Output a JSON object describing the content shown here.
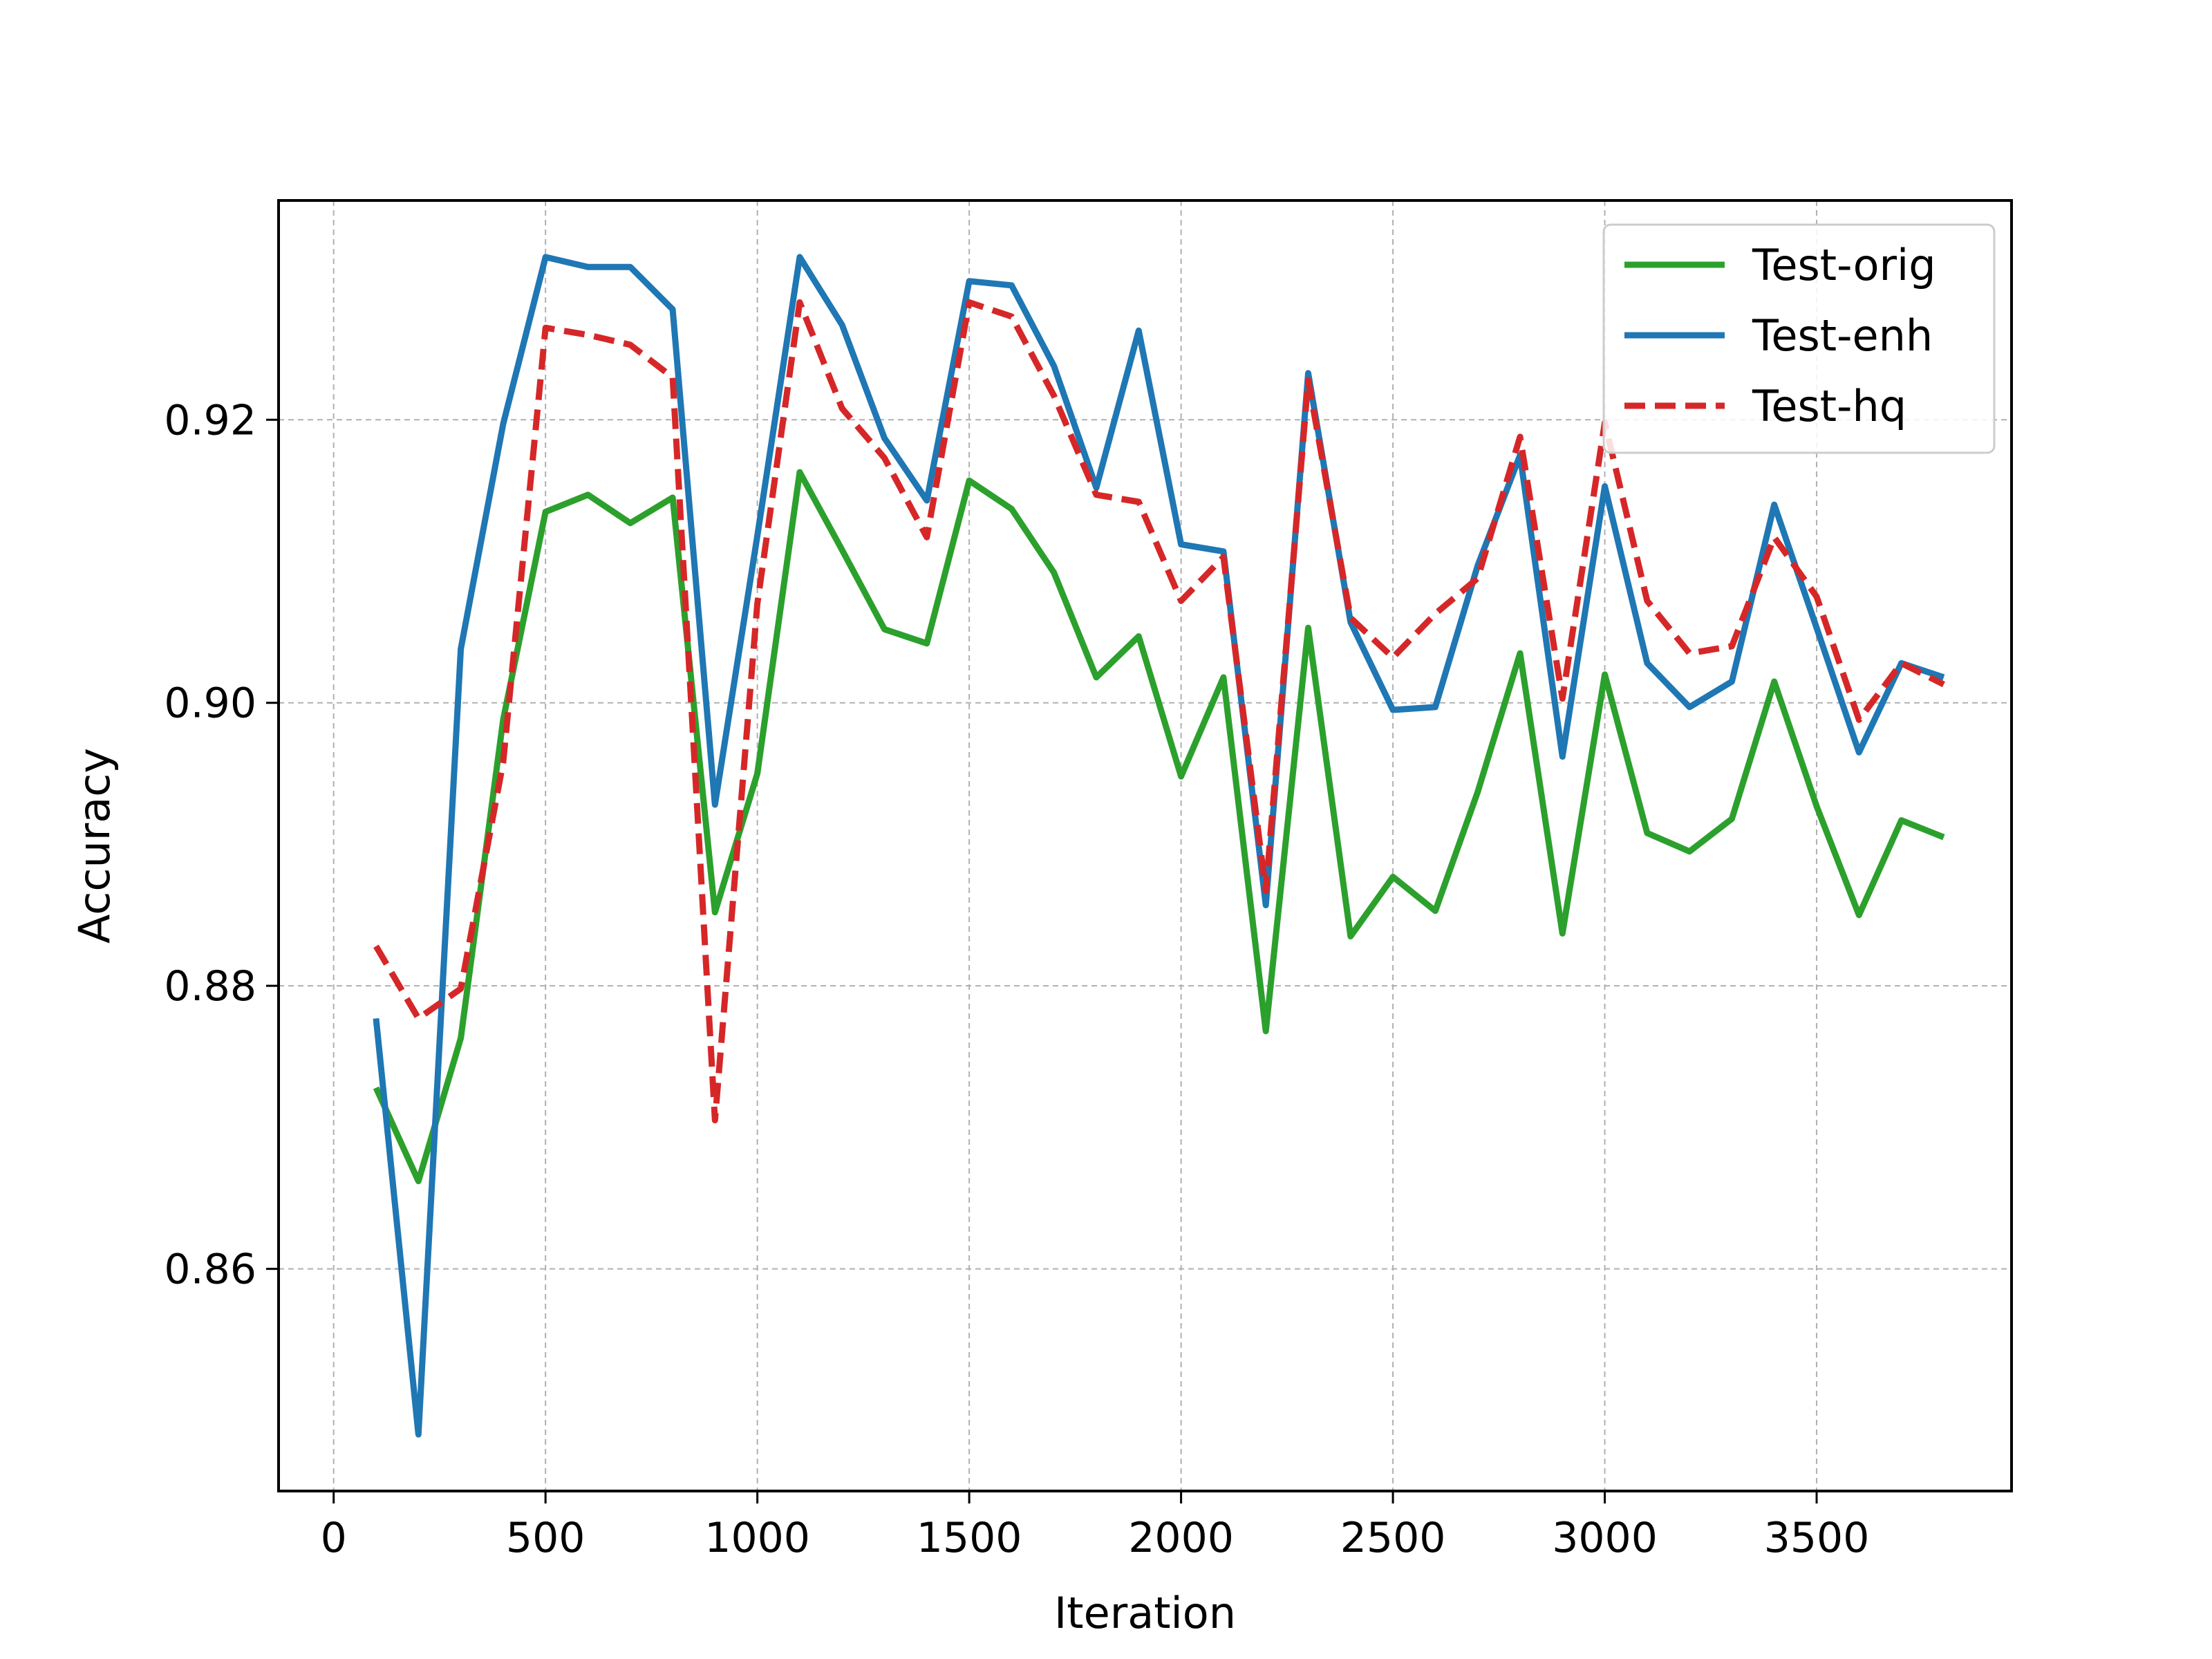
{
  "chart_data": {
    "type": "line",
    "xlabel": "Iteration",
    "ylabel": "Accuracy",
    "xlim": [
      -130,
      3960
    ],
    "ylim": [
      0.8443,
      0.9355
    ],
    "xticks": [
      0,
      500,
      1000,
      1500,
      2000,
      2500,
      3000,
      3500
    ],
    "xtick_labels": [
      "0",
      "500",
      "1000",
      "1500",
      "2000",
      "2500",
      "3000",
      "3500"
    ],
    "yticks": [
      0.86,
      0.88,
      0.9,
      0.92
    ],
    "ytick_labels": [
      "0.86",
      "0.88",
      "0.90",
      "0.92"
    ],
    "grid": true,
    "legend_position": "top-right",
    "x": [
      100,
      200,
      300,
      400,
      500,
      600,
      700,
      800,
      900,
      1000,
      1100,
      1200,
      1300,
      1400,
      1500,
      1600,
      1700,
      1800,
      1900,
      2000,
      2100,
      2200,
      2300,
      2400,
      2500,
      2600,
      2700,
      2800,
      2900,
      3000,
      3100,
      3200,
      3300,
      3400,
      3500,
      3600,
      3700,
      3800
    ],
    "series": [
      {
        "name": "Test-orig",
        "color": "#2ca02c",
        "dash": "solid",
        "values": [
          0.8728,
          0.8662,
          0.8763,
          0.8988,
          0.9135,
          0.9147,
          0.9127,
          0.9145,
          0.8852,
          0.895,
          0.9163,
          0.9108,
          0.9052,
          0.9042,
          0.9157,
          0.9137,
          0.9092,
          0.9018,
          0.9047,
          0.8948,
          0.9018,
          0.8768,
          0.9053,
          0.8835,
          0.8877,
          0.8853,
          0.8937,
          0.9035,
          0.8837,
          0.902,
          0.8908,
          0.8895,
          0.8918,
          0.9015,
          0.8927,
          0.885,
          0.8917,
          0.8905
        ]
      },
      {
        "name": "Test-enh",
        "color": "#1f77b4",
        "dash": "solid",
        "values": [
          0.8777,
          0.8483,
          0.9038,
          0.9197,
          0.9315,
          0.9308,
          0.9308,
          0.9278,
          0.8928,
          0.9118,
          0.9315,
          0.9267,
          0.9187,
          0.9143,
          0.9298,
          0.9295,
          0.9238,
          0.9152,
          0.9263,
          0.9112,
          0.9107,
          0.8857,
          0.9233,
          0.9057,
          0.8995,
          0.8997,
          0.9097,
          0.9175,
          0.8962,
          0.9153,
          0.9028,
          0.8997,
          0.9015,
          0.914,
          0.9053,
          0.8965,
          0.9028,
          0.9018
        ]
      },
      {
        "name": "Test-hq",
        "color": "#d62728",
        "dash": "dashed",
        "values": [
          0.8828,
          0.8777,
          0.8798,
          0.8958,
          0.9265,
          0.926,
          0.9253,
          0.923,
          0.8705,
          0.907,
          0.9283,
          0.9208,
          0.9173,
          0.9117,
          0.9283,
          0.9273,
          0.9217,
          0.9147,
          0.9142,
          0.9072,
          0.9103,
          0.8867,
          0.9228,
          0.906,
          0.9032,
          0.9063,
          0.9088,
          0.9188,
          0.9003,
          0.9198,
          0.9072,
          0.9035,
          0.904,
          0.9117,
          0.9075,
          0.8988,
          0.9028,
          0.9013
        ]
      }
    ]
  }
}
